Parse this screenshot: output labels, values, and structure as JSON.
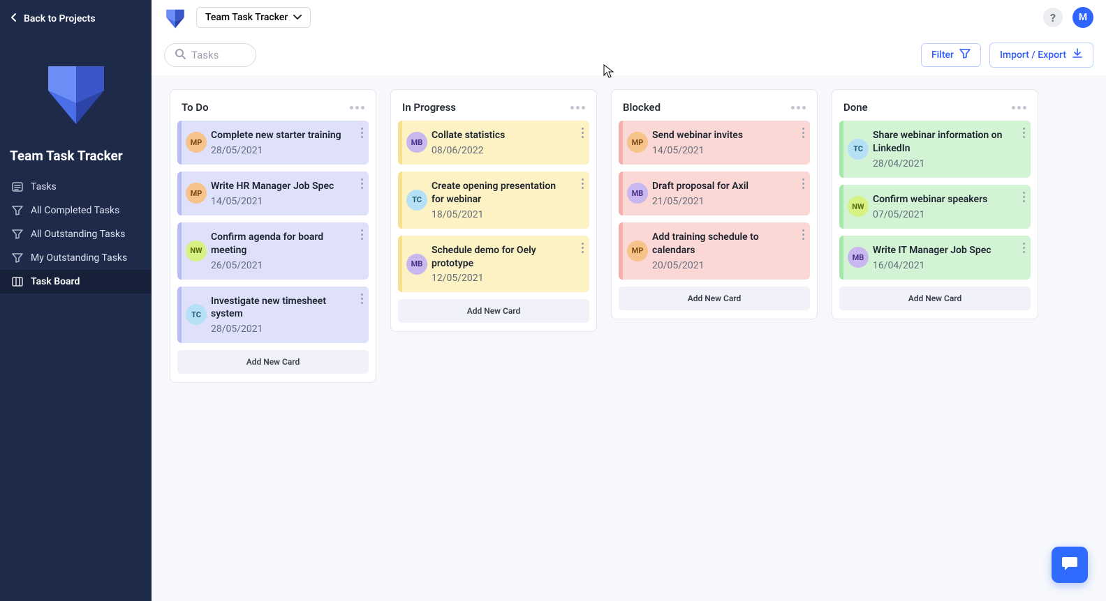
{
  "sidebar": {
    "back_label": "Back to Projects",
    "title": "Team Task Tracker",
    "nav": [
      {
        "label": "Tasks",
        "icon": "list-icon",
        "active": false
      },
      {
        "label": "All Completed Tasks",
        "icon": "filter-icon",
        "active": false
      },
      {
        "label": "All Outstanding Tasks",
        "icon": "filter-icon",
        "active": false
      },
      {
        "label": "My Outstanding Tasks",
        "icon": "filter-icon",
        "active": false
      },
      {
        "label": "Task Board",
        "icon": "board-icon",
        "active": true
      }
    ]
  },
  "topbar": {
    "project_name": "Team Task Tracker",
    "help_label": "?",
    "avatar_initial": "M"
  },
  "toolbar": {
    "search_placeholder": "Tasks",
    "filter_label": "Filter",
    "import_export_label": "Import / Export"
  },
  "board": {
    "add_card_label": "Add New Card",
    "columns": [
      {
        "id": "todo",
        "title": "To Do",
        "cards": [
          {
            "title": "Complete new starter training",
            "date": "28/05/2021",
            "avatar": "MP",
            "avatar_class": "av-mp"
          },
          {
            "title": "Write HR Manager Job Spec",
            "date": "14/05/2021",
            "avatar": "MP",
            "avatar_class": "av-mp"
          },
          {
            "title": "Confirm agenda for board meeting",
            "date": "26/05/2021",
            "avatar": "NW",
            "avatar_class": "av-nw"
          },
          {
            "title": "Investigate new timesheet system",
            "date": "28/05/2021",
            "avatar": "TC",
            "avatar_class": "av-tc"
          }
        ]
      },
      {
        "id": "progress",
        "title": "In Progress",
        "cards": [
          {
            "title": "Collate statistics",
            "date": "08/06/2022",
            "avatar": "MB",
            "avatar_class": "av-mb"
          },
          {
            "title": "Create opening presentation for webinar",
            "date": "18/05/2021",
            "avatar": "TC",
            "avatar_class": "av-tc"
          },
          {
            "title": "Schedule demo for Oely prototype",
            "date": "12/05/2021",
            "avatar": "MB",
            "avatar_class": "av-mb"
          }
        ]
      },
      {
        "id": "blocked",
        "title": "Blocked",
        "cards": [
          {
            "title": "Send webinar invites",
            "date": "14/05/2021",
            "avatar": "MP",
            "avatar_class": "av-mp"
          },
          {
            "title": "Draft proposal for Axil",
            "date": "21/05/2021",
            "avatar": "MB",
            "avatar_class": "av-mb"
          },
          {
            "title": "Add training schedule to calendars",
            "date": "20/05/2021",
            "avatar": "MP",
            "avatar_class": "av-mp"
          }
        ]
      },
      {
        "id": "done",
        "title": "Done",
        "cards": [
          {
            "title": "Share webinar information on LinkedIn",
            "date": "28/04/2021",
            "avatar": "TC",
            "avatar_class": "av-tc"
          },
          {
            "title": "Confirm webinar speakers",
            "date": "07/05/2021",
            "avatar": "NW",
            "avatar_class": "av-nw"
          },
          {
            "title": "Write IT Manager Job Spec",
            "date": "16/04/2021",
            "avatar": "MB",
            "avatar_class": "av-mb"
          }
        ]
      }
    ]
  },
  "palette": {
    "sidebar_bg": "#1e2a4a",
    "accent": "#2f5dff",
    "column_colors": {
      "todo": {
        "card": "#dfe1fb",
        "stripe": "#b9bdf6"
      },
      "progress": {
        "card": "#fcf2c3",
        "stripe": "#f5e18e"
      },
      "blocked": {
        "card": "#fbd8d6",
        "stripe": "#f3b0ac"
      },
      "done": {
        "card": "#d2f4d5",
        "stripe": "#a6e7ab"
      }
    },
    "avatars": {
      "MP": "#f6c38a",
      "NW": "#d7f283",
      "TC": "#b6e0f5",
      "MB": "#c9b8f0"
    }
  }
}
